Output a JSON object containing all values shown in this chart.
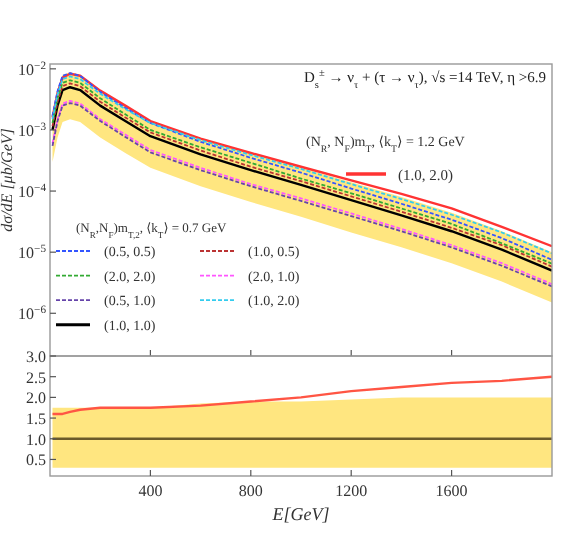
{
  "chart_data": [
    {
      "type": "line",
      "title": "D$_{s}$$^{±}$ → ν$_{τ}$ + (τ → ν$_{τ}$), √s =14 TeV, η >6.9",
      "ylabel": "dσ/dE [μb/GeV]",
      "legend_title": "(N$_{R}$,N$_{F}$)m$_{T,2}$, ⟨k$_{T}$⟩ = 0.7 GeV",
      "annotations": [
        "(N$_{R}$, N$_{F}$)m$_{T}$, ⟨k$_{T}$⟩ = 1.2 GeV"
      ],
      "log": "y",
      "legend": "bottom left",
      "tick_labels": "y",
      "x": [
        10,
        30,
        50,
        80,
        120,
        200,
        300,
        400,
        600,
        800,
        1000,
        1200,
        1400,
        1600,
        1800,
        2000
      ],
      "xlim": [
        0,
        2000
      ],
      "xticks": [
        {
          "value": 400,
          "label": null
        },
        {
          "value": 800,
          "label": null
        },
        {
          "value": 1200,
          "label": null
        },
        {
          "value": 1600,
          "label": null
        }
      ],
      "ylim": [
        2e-07,
        0.012
      ],
      "yticks": [
        {
          "value": 0.01,
          "label": "10$^{−2}$"
        },
        {
          "value": 0.001,
          "label": "10$^{−3}$"
        },
        {
          "value": 0.0001,
          "label": "10$^{−4}$"
        },
        {
          "value": 1e-05,
          "label": "10$^{−5}$"
        },
        {
          "value": 1e-06,
          "label": "10$^{−6}$"
        }
      ],
      "series": [
        {
          "name": "(0.5, 0.5)",
          "color": "#3355ff",
          "line_style": "dashed",
          "values": [
            0.0017,
            0.0043,
            0.0077,
            0.0085,
            0.0077,
            0.0042,
            0.0023,
            0.0013,
            0.00064,
            0.00035,
            0.0002,
            0.00011,
            6.2e-05,
            3.4e-05,
            1.7e-05,
            7.5e-06
          ]
        },
        {
          "name": "(1.0, 0.5)",
          "color": "#bb3333",
          "line_style": "dashed",
          "values": [
            0.00115,
            0.0029,
            0.0052,
            0.0058,
            0.0052,
            0.0029,
            0.0016,
            0.00091,
            0.00046,
            0.00025,
            0.000145,
            8.2e-05,
            4.6e-05,
            2.5e-05,
            1.3e-05,
            5.8e-06
          ]
        },
        {
          "name": "(2.0, 2.0)",
          "color": "#33aa33",
          "line_style": "dashed",
          "values": [
            0.0013,
            0.0033,
            0.0059,
            0.0065,
            0.0059,
            0.0033,
            0.0018,
            0.001,
            0.00052,
            0.00029,
            0.00016,
            9.2e-05,
            5.2e-05,
            2.9e-05,
            1.4e-05,
            6.5e-06
          ]
        },
        {
          "name": "(2.0, 1.0)",
          "color": "#ff55ff",
          "line_style": "dashed",
          "values": [
            0.0006,
            0.0015,
            0.0027,
            0.003,
            0.0027,
            0.0015,
            0.00084,
            0.00047,
            0.00024,
            0.00013,
            7.6e-05,
            4.3e-05,
            2.4e-05,
            1.3e-05,
            6.6e-06,
            3e-06
          ]
        },
        {
          "name": "(0.5, 1.0)",
          "color": "#6644aa",
          "line_style": "dashed",
          "values": [
            0.00055,
            0.0014,
            0.0025,
            0.00275,
            0.0025,
            0.0014,
            0.00077,
            0.00043,
            0.00022,
            0.00012,
            6.9e-05,
            3.9e-05,
            2.2e-05,
            1.2e-05,
            6e-06,
            2.75e-06
          ]
        },
        {
          "name": "(1.0, 2.0)",
          "color": "#33ccee",
          "line_style": "dashed",
          "values": [
            0.0015,
            0.0038,
            0.0068,
            0.0075,
            0.0068,
            0.0039,
            0.0022,
            0.0013,
            0.00068,
            0.00039,
            0.00023,
            0.00013,
            7.4e-05,
            4.1e-05,
            2.1e-05,
            9.5e-06
          ]
        },
        {
          "name": "(1.0, 1.0)",
          "color": "#000000",
          "line_style": "solid",
          "values": [
            0.001,
            0.0025,
            0.0045,
            0.005,
            0.0045,
            0.0025,
            0.0014,
            0.00079,
            0.0004,
            0.00022,
            0.000126,
            7.1e-05,
            4e-05,
            2.2e-05,
            1.1e-05,
            5e-06
          ],
          "upper": [
            0.00175,
            0.0044,
            0.0079,
            0.0088,
            0.0079,
            0.0044,
            0.0025,
            0.0014,
            0.00074,
            0.00042,
            0.00024,
            0.00014,
            8e-05,
            4.4e-05,
            2.2e-05,
            1e-05
          ],
          "lower": [
            0.0003,
            0.00075,
            0.00135,
            0.0015,
            0.00135,
            0.00075,
            0.00042,
            0.00024,
            0.00012,
            6.6e-05,
            3.8e-05,
            2.1e-05,
            1.2e-05,
            6.6e-06,
            3.3e-06,
            1.5e-06
          ]
        },
        {
          "name": "(1.0, 2.0)",
          "color": "#ff3333",
          "line_style": "solid",
          "values": [
            0.0016,
            0.004,
            0.0072,
            0.0083,
            0.0077,
            0.0044,
            0.0025,
            0.0014,
            0.00072,
            0.00042,
            0.00025,
            0.00015,
            9e-05,
            5.2e-05,
            2.6e-05,
            1.25e-05
          ]
        }
      ]
    },
    {
      "type": "line",
      "xlabel": "E[GeV]",
      "x": [
        10,
        30,
        50,
        80,
        120,
        200,
        300,
        400,
        600,
        800,
        1000,
        1200,
        1400,
        1600,
        1800,
        2000
      ],
      "xlim": [
        0,
        2000
      ],
      "xticks": [
        400,
        800,
        1200,
        1600
      ],
      "ylim": [
        0.1,
        3.0
      ],
      "yticks": [
        {
          "value": 0.5,
          "label": "0.5"
        },
        {
          "value": 1,
          "label": "1.0"
        },
        {
          "value": 1.5,
          "label": "1.5"
        },
        {
          "value": 2,
          "label": "2.0"
        },
        {
          "value": 2.5,
          "label": "2.5"
        },
        {
          "value": 3,
          "label": "3.0"
        }
      ],
      "series": [
        {
          "color": "#6b5a2a",
          "values": [
            1,
            1,
            1,
            1,
            1,
            1,
            1,
            1,
            1,
            1,
            1,
            1,
            1,
            1,
            1,
            1
          ],
          "upper": [
            1.75,
            1.75,
            1.75,
            1.75,
            1.75,
            1.75,
            1.75,
            1.75,
            1.85,
            1.9,
            1.9,
            1.95,
            2.0,
            2.0,
            2.0,
            2.0
          ],
          "lower": [
            0.3,
            0.3,
            0.3,
            0.3,
            0.3,
            0.3,
            0.3,
            0.3,
            0.3,
            0.3,
            0.3,
            0.3,
            0.3,
            0.3,
            0.3,
            0.3
          ]
        },
        {
          "color": "#ff5544",
          "values": [
            1.6,
            1.6,
            1.6,
            1.65,
            1.7,
            1.75,
            1.75,
            1.75,
            1.8,
            1.9,
            2.0,
            2.15,
            2.25,
            2.35,
            2.4,
            2.5
          ]
        }
      ]
    }
  ]
}
